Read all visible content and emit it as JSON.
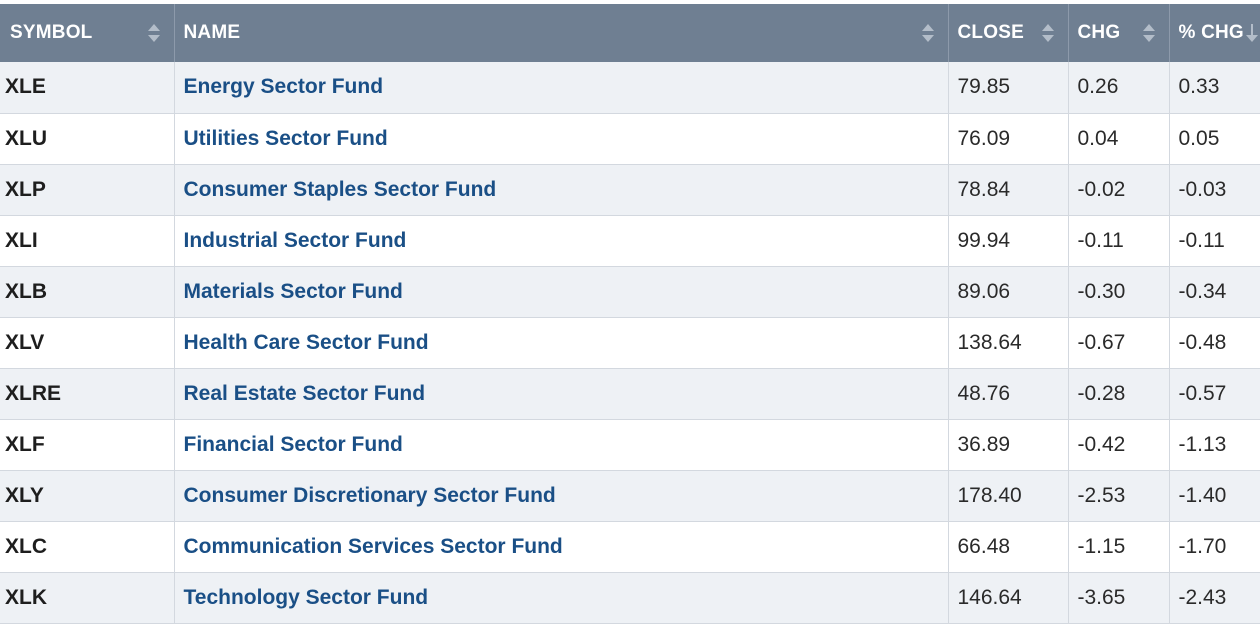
{
  "table": {
    "headers": {
      "symbol": "SYMBOL",
      "name": "NAME",
      "close": "CLOSE",
      "chg": "CHG",
      "pct_chg": "% CHG"
    },
    "sort": {
      "column": "% CHG",
      "direction": "descending"
    },
    "rows": [
      {
        "symbol": "XLE",
        "name": "Energy Sector Fund",
        "close": "79.85",
        "chg": "0.26",
        "pct": "0.33"
      },
      {
        "symbol": "XLU",
        "name": "Utilities Sector Fund",
        "close": "76.09",
        "chg": "0.04",
        "pct": "0.05"
      },
      {
        "symbol": "XLP",
        "name": "Consumer Staples Sector Fund",
        "close": "78.84",
        "chg": "-0.02",
        "pct": "-0.03"
      },
      {
        "symbol": "XLI",
        "name": "Industrial Sector Fund",
        "close": "99.94",
        "chg": "-0.11",
        "pct": "-0.11"
      },
      {
        "symbol": "XLB",
        "name": "Materials Sector Fund",
        "close": "89.06",
        "chg": "-0.30",
        "pct": "-0.34"
      },
      {
        "symbol": "XLV",
        "name": "Health Care Sector Fund",
        "close": "138.64",
        "chg": "-0.67",
        "pct": "-0.48"
      },
      {
        "symbol": "XLRE",
        "name": "Real Estate Sector Fund",
        "close": "48.76",
        "chg": "-0.28",
        "pct": "-0.57"
      },
      {
        "symbol": "XLF",
        "name": "Financial Sector Fund",
        "close": "36.89",
        "chg": "-0.42",
        "pct": "-1.13"
      },
      {
        "symbol": "XLY",
        "name": "Consumer Discretionary Sector Fund",
        "close": "178.40",
        "chg": "-2.53",
        "pct": "-1.40"
      },
      {
        "symbol": "XLC",
        "name": "Communication Services Sector Fund",
        "close": "66.48",
        "chg": "-1.15",
        "pct": "-1.70"
      },
      {
        "symbol": "XLK",
        "name": "Technology Sector Fund",
        "close": "146.64",
        "chg": "-3.65",
        "pct": "-2.43"
      }
    ]
  },
  "colors": {
    "header_bg": "#6f7f92",
    "link": "#1a4f86",
    "row_alt": "#eef1f5"
  }
}
